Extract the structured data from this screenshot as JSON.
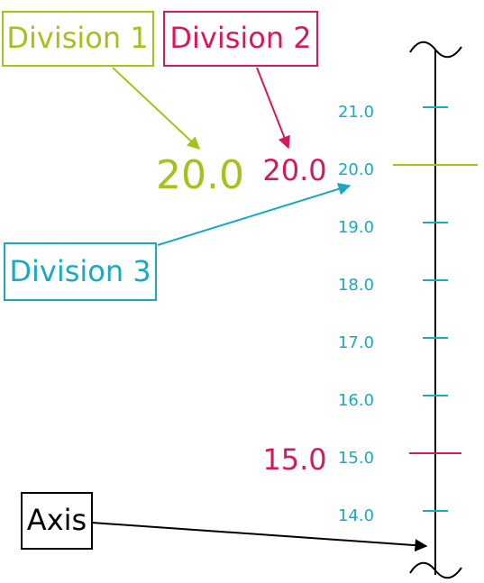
{
  "callouts": {
    "division_1": "Division 1",
    "division_2": "Division 2",
    "division_3": "Division 3",
    "axis": "Axis"
  },
  "division_1_label": "20.0",
  "division_2_labels": [
    "20.0",
    "15.0"
  ],
  "division_3_labels": [
    "21.0",
    "20.0",
    "19.0",
    "18.0",
    "17.0",
    "16.0",
    "15.0",
    "14.0"
  ]
}
